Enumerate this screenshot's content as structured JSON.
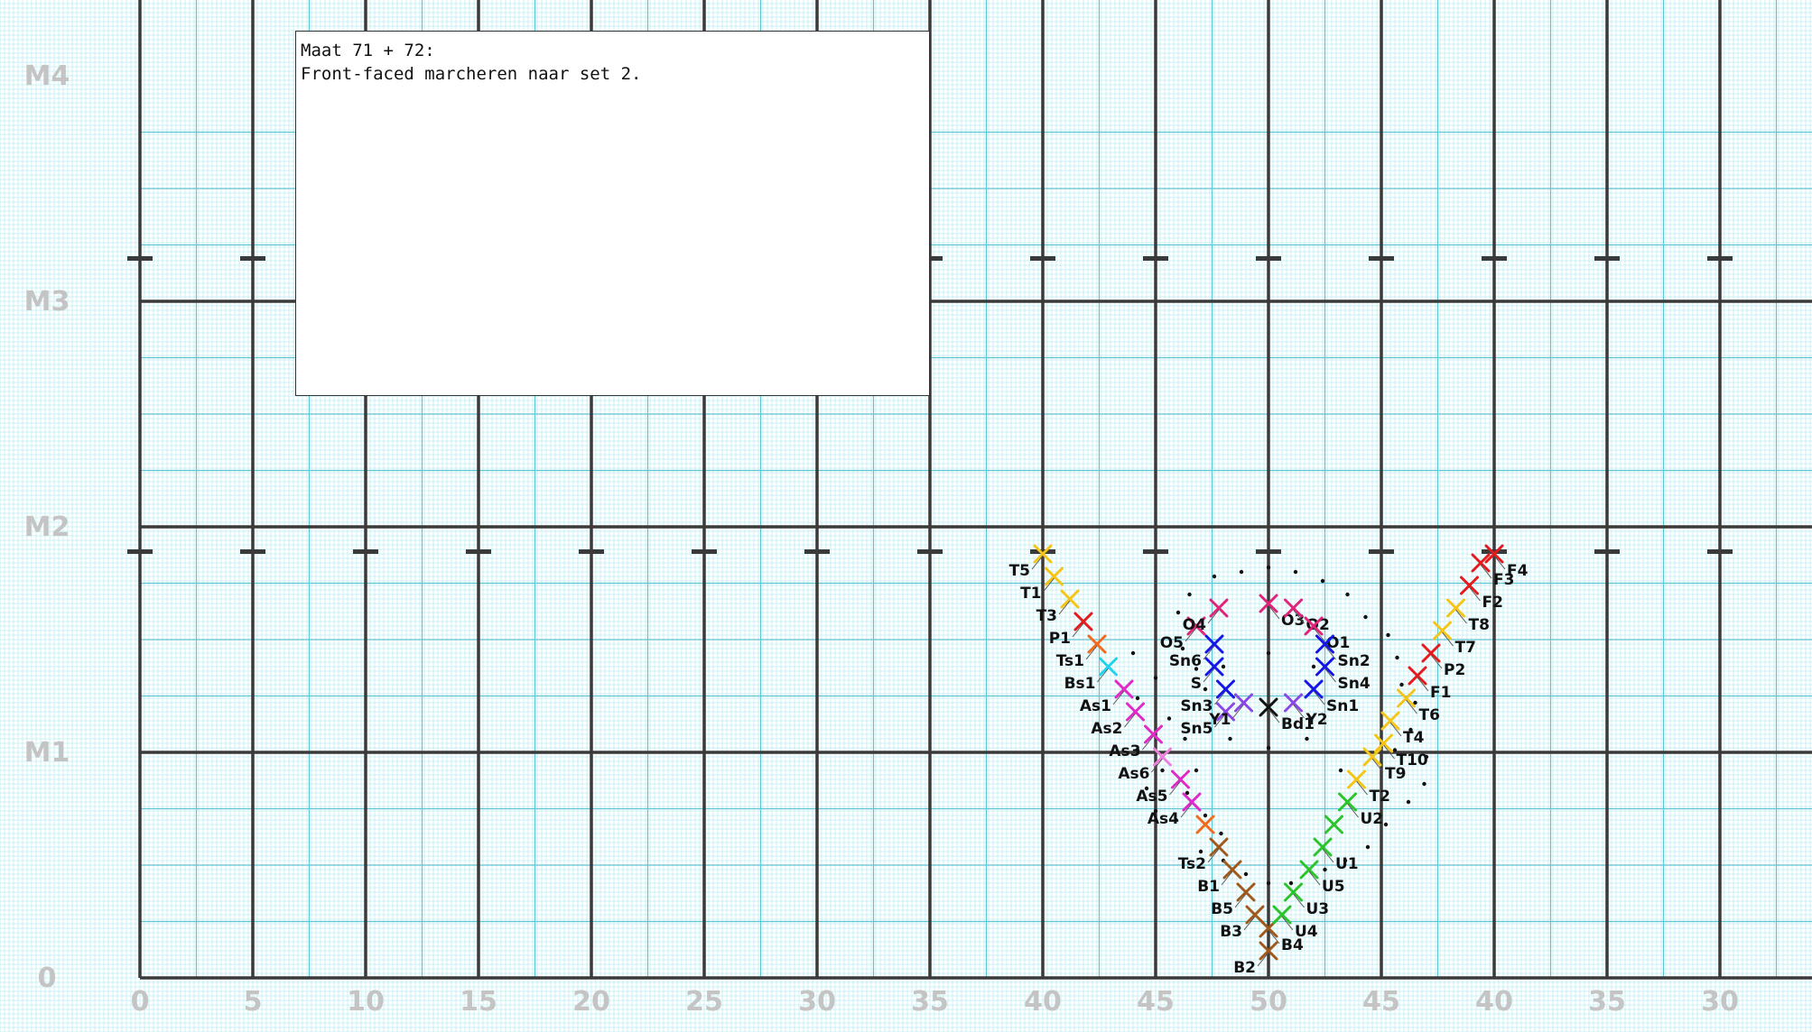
{
  "note": {
    "line1": "Maat 71 + 72:",
    "line2": "Front-faced marcheren naar set 2."
  },
  "x_axis_labels": [
    "0",
    "5",
    "10",
    "15",
    "20",
    "25",
    "30",
    "35",
    "40",
    "45",
    "50",
    "45",
    "40",
    "35",
    "30"
  ],
  "y_axis_labels": [
    "0",
    "M1",
    "M2",
    "M3",
    "M4"
  ],
  "colors": {
    "minor_grid": "#bfeef3",
    "medium_grid": "#5fc4d4",
    "major_grid": "#3a3a3a",
    "axis_text": "#c4c4c4"
  },
  "markers": [
    {
      "label": "T5",
      "x": 40.0,
      "y": 1.88,
      "color": "#f5c518"
    },
    {
      "label": "T1",
      "x": 40.5,
      "y": 1.78,
      "color": "#f5c518"
    },
    {
      "label": "T3",
      "x": 41.2,
      "y": 1.68,
      "color": "#f5c518"
    },
    {
      "label": "P1",
      "x": 41.8,
      "y": 1.58,
      "color": "#e41a1c"
    },
    {
      "label": "Ts1",
      "x": 42.4,
      "y": 1.48,
      "color": "#f26b1d"
    },
    {
      "label": "Bs1",
      "x": 42.9,
      "y": 1.38,
      "color": "#22d3ee"
    },
    {
      "label": "As1",
      "x": 43.6,
      "y": 1.28,
      "color": "#e029c8"
    },
    {
      "label": "As2",
      "x": 44.1,
      "y": 1.18,
      "color": "#e029c8"
    },
    {
      "label": "As3",
      "x": 44.9,
      "y": 1.08,
      "color": "#e029c8"
    },
    {
      "label": "As6",
      "x": 45.3,
      "y": 0.98,
      "color": "#ee7fdc"
    },
    {
      "label": "As5",
      "x": 46.1,
      "y": 0.88,
      "color": "#e029c8"
    },
    {
      "label": "As4",
      "x": 46.6,
      "y": 0.78,
      "color": "#e029c8"
    },
    {
      "label": "",
      "x": 47.2,
      "y": 0.68,
      "color": "#f26b1d"
    },
    {
      "label": "Ts2",
      "x": 47.8,
      "y": 0.58,
      "color": "#a0591b"
    },
    {
      "label": "B1",
      "x": 48.4,
      "y": 0.48,
      "color": "#a0591b"
    },
    {
      "label": "B5",
      "x": 49.0,
      "y": 0.38,
      "color": "#a0591b"
    },
    {
      "label": "B3",
      "x": 49.4,
      "y": 0.28,
      "color": "#a0591b"
    },
    {
      "label": "B4",
      "x": 50.0,
      "y": 0.22,
      "color": "#a0591b"
    },
    {
      "label": "U4",
      "x": 50.6,
      "y": 0.28,
      "color": "#2bc42b"
    },
    {
      "label": "U3",
      "x": 51.1,
      "y": 0.38,
      "color": "#2bc42b"
    },
    {
      "label": "U5",
      "x": 51.8,
      "y": 0.48,
      "color": "#2bc42b"
    },
    {
      "label": "U1",
      "x": 52.4,
      "y": 0.58,
      "color": "#2bc42b"
    },
    {
      "label": "",
      "x": 52.9,
      "y": 0.68,
      "color": "#2bc42b"
    },
    {
      "label": "U2",
      "x": 53.5,
      "y": 0.78,
      "color": "#2bc42b"
    },
    {
      "label": "T2",
      "x": 53.9,
      "y": 0.88,
      "color": "#f5c518"
    },
    {
      "label": "T9",
      "x": 54.6,
      "y": 0.98,
      "color": "#f5c518"
    },
    {
      "label": "T10",
      "x": 55.1,
      "y": 1.04,
      "color": "#f5c518"
    },
    {
      "label": "T4",
      "x": 55.4,
      "y": 1.14,
      "color": "#f5c518"
    },
    {
      "label": "T6",
      "x": 56.1,
      "y": 1.24,
      "color": "#f5c518"
    },
    {
      "label": "F1",
      "x": 56.6,
      "y": 1.34,
      "color": "#e41a1c"
    },
    {
      "label": "P2",
      "x": 57.2,
      "y": 1.44,
      "color": "#e41a1c"
    },
    {
      "label": "T7",
      "x": 57.7,
      "y": 1.54,
      "color": "#f5c518"
    },
    {
      "label": "T8",
      "x": 58.3,
      "y": 1.64,
      "color": "#f5c518"
    },
    {
      "label": "F2",
      "x": 58.9,
      "y": 1.74,
      "color": "#e41a1c"
    },
    {
      "label": "F3",
      "x": 59.4,
      "y": 1.84,
      "color": "#e41a1c"
    },
    {
      "label": "F4",
      "x": 60.0,
      "y": 1.88,
      "color": "#e41a1c"
    },
    {
      "label": "O5",
      "x": 46.8,
      "y": 1.56,
      "color": "#e0247a"
    },
    {
      "label": "O4",
      "x": 47.8,
      "y": 1.64,
      "color": "#e0247a"
    },
    {
      "label": "O3",
      "x": 50.0,
      "y": 1.66,
      "color": "#e0247a"
    },
    {
      "label": "O2",
      "x": 51.1,
      "y": 1.64,
      "color": "#e0247a"
    },
    {
      "label": "O1",
      "x": 52.0,
      "y": 1.56,
      "color": "#e0247a"
    },
    {
      "label": "Sn6",
      "x": 47.6,
      "y": 1.48,
      "color": "#1515e8"
    },
    {
      "label": "S",
      "x": 47.6,
      "y": 1.38,
      "color": "#1515e8"
    },
    {
      "label": "Sn3",
      "x": 48.1,
      "y": 1.28,
      "color": "#1515e8"
    },
    {
      "label": "Sn2",
      "x": 52.5,
      "y": 1.48,
      "color": "#1515e8"
    },
    {
      "label": "Sn4",
      "x": 52.5,
      "y": 1.38,
      "color": "#1515e8"
    },
    {
      "label": "Sn1",
      "x": 52.0,
      "y": 1.28,
      "color": "#1515e8"
    },
    {
      "label": "Sn5",
      "x": 48.1,
      "y": 1.18,
      "color": "#8a46e6"
    },
    {
      "label": "Y1",
      "x": 48.9,
      "y": 1.22,
      "color": "#8a46e6"
    },
    {
      "label": "Bd1",
      "x": 50.0,
      "y": 1.2,
      "color": "#111111"
    },
    {
      "label": "Y2",
      "x": 51.1,
      "y": 1.22,
      "color": "#8a46e6"
    },
    {
      "label": "B2",
      "x": 50.0,
      "y": 0.12,
      "color": "#a0591b"
    }
  ]
}
